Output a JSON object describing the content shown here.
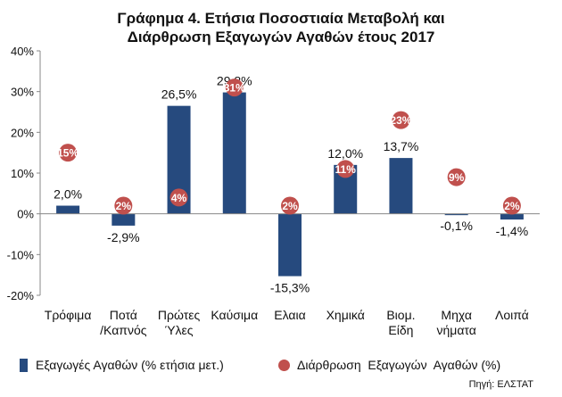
{
  "chart_data": {
    "type": "bar",
    "title_line1": "Γράφημα 4. Ετήσια Ποσοστιαία Μεταβολή και",
    "title_line2": "Διάρθρωση Εξαγωγών  Αγαθών έτους 2017",
    "categories": [
      [
        "Τρόφιμα"
      ],
      [
        "Ποτά",
        "/Καπνός"
      ],
      [
        "Πρώτες",
        "Ύλες"
      ],
      [
        "Καύσιμα"
      ],
      [
        "Ελαια"
      ],
      [
        "Χημικά"
      ],
      [
        "Βιομ.",
        "Είδη"
      ],
      [
        "Μηχα",
        "νήματα"
      ],
      [
        "Λοιπά"
      ]
    ],
    "series": [
      {
        "name": "Εξαγωγές Αγαθών (% ετήσια μετ.)",
        "type": "bar",
        "color": "#264a7e",
        "values": [
          2.0,
          -2.9,
          26.5,
          29.8,
          -15.3,
          12.0,
          13.7,
          -0.1,
          -1.4
        ],
        "labels": [
          "2,0%",
          "-2,9%",
          "26,5%",
          "29,8%",
          "-15,3%",
          "12,0%",
          "13,7%",
          "-0,1%",
          "-1,4%"
        ]
      },
      {
        "name": "Διάρθρωση  Εξαγωγών  Αγαθών (%)",
        "type": "scatter",
        "color": "#c0504d",
        "values": [
          15,
          2,
          4,
          31,
          2,
          11,
          23,
          9,
          2
        ],
        "labels": [
          "15%",
          "2%",
          "4%",
          "31%",
          "2%",
          "11%",
          "23%",
          "9%",
          "2%"
        ]
      }
    ],
    "yticks": [
      "40%",
      "30%",
      "20%",
      "10%",
      "0%",
      "-10%",
      "-20%"
    ],
    "ylim": [
      -20,
      40
    ],
    "grid": false,
    "legend_position": "bottom",
    "source": "Πηγή: ΕΛΣΤΑΤ"
  }
}
